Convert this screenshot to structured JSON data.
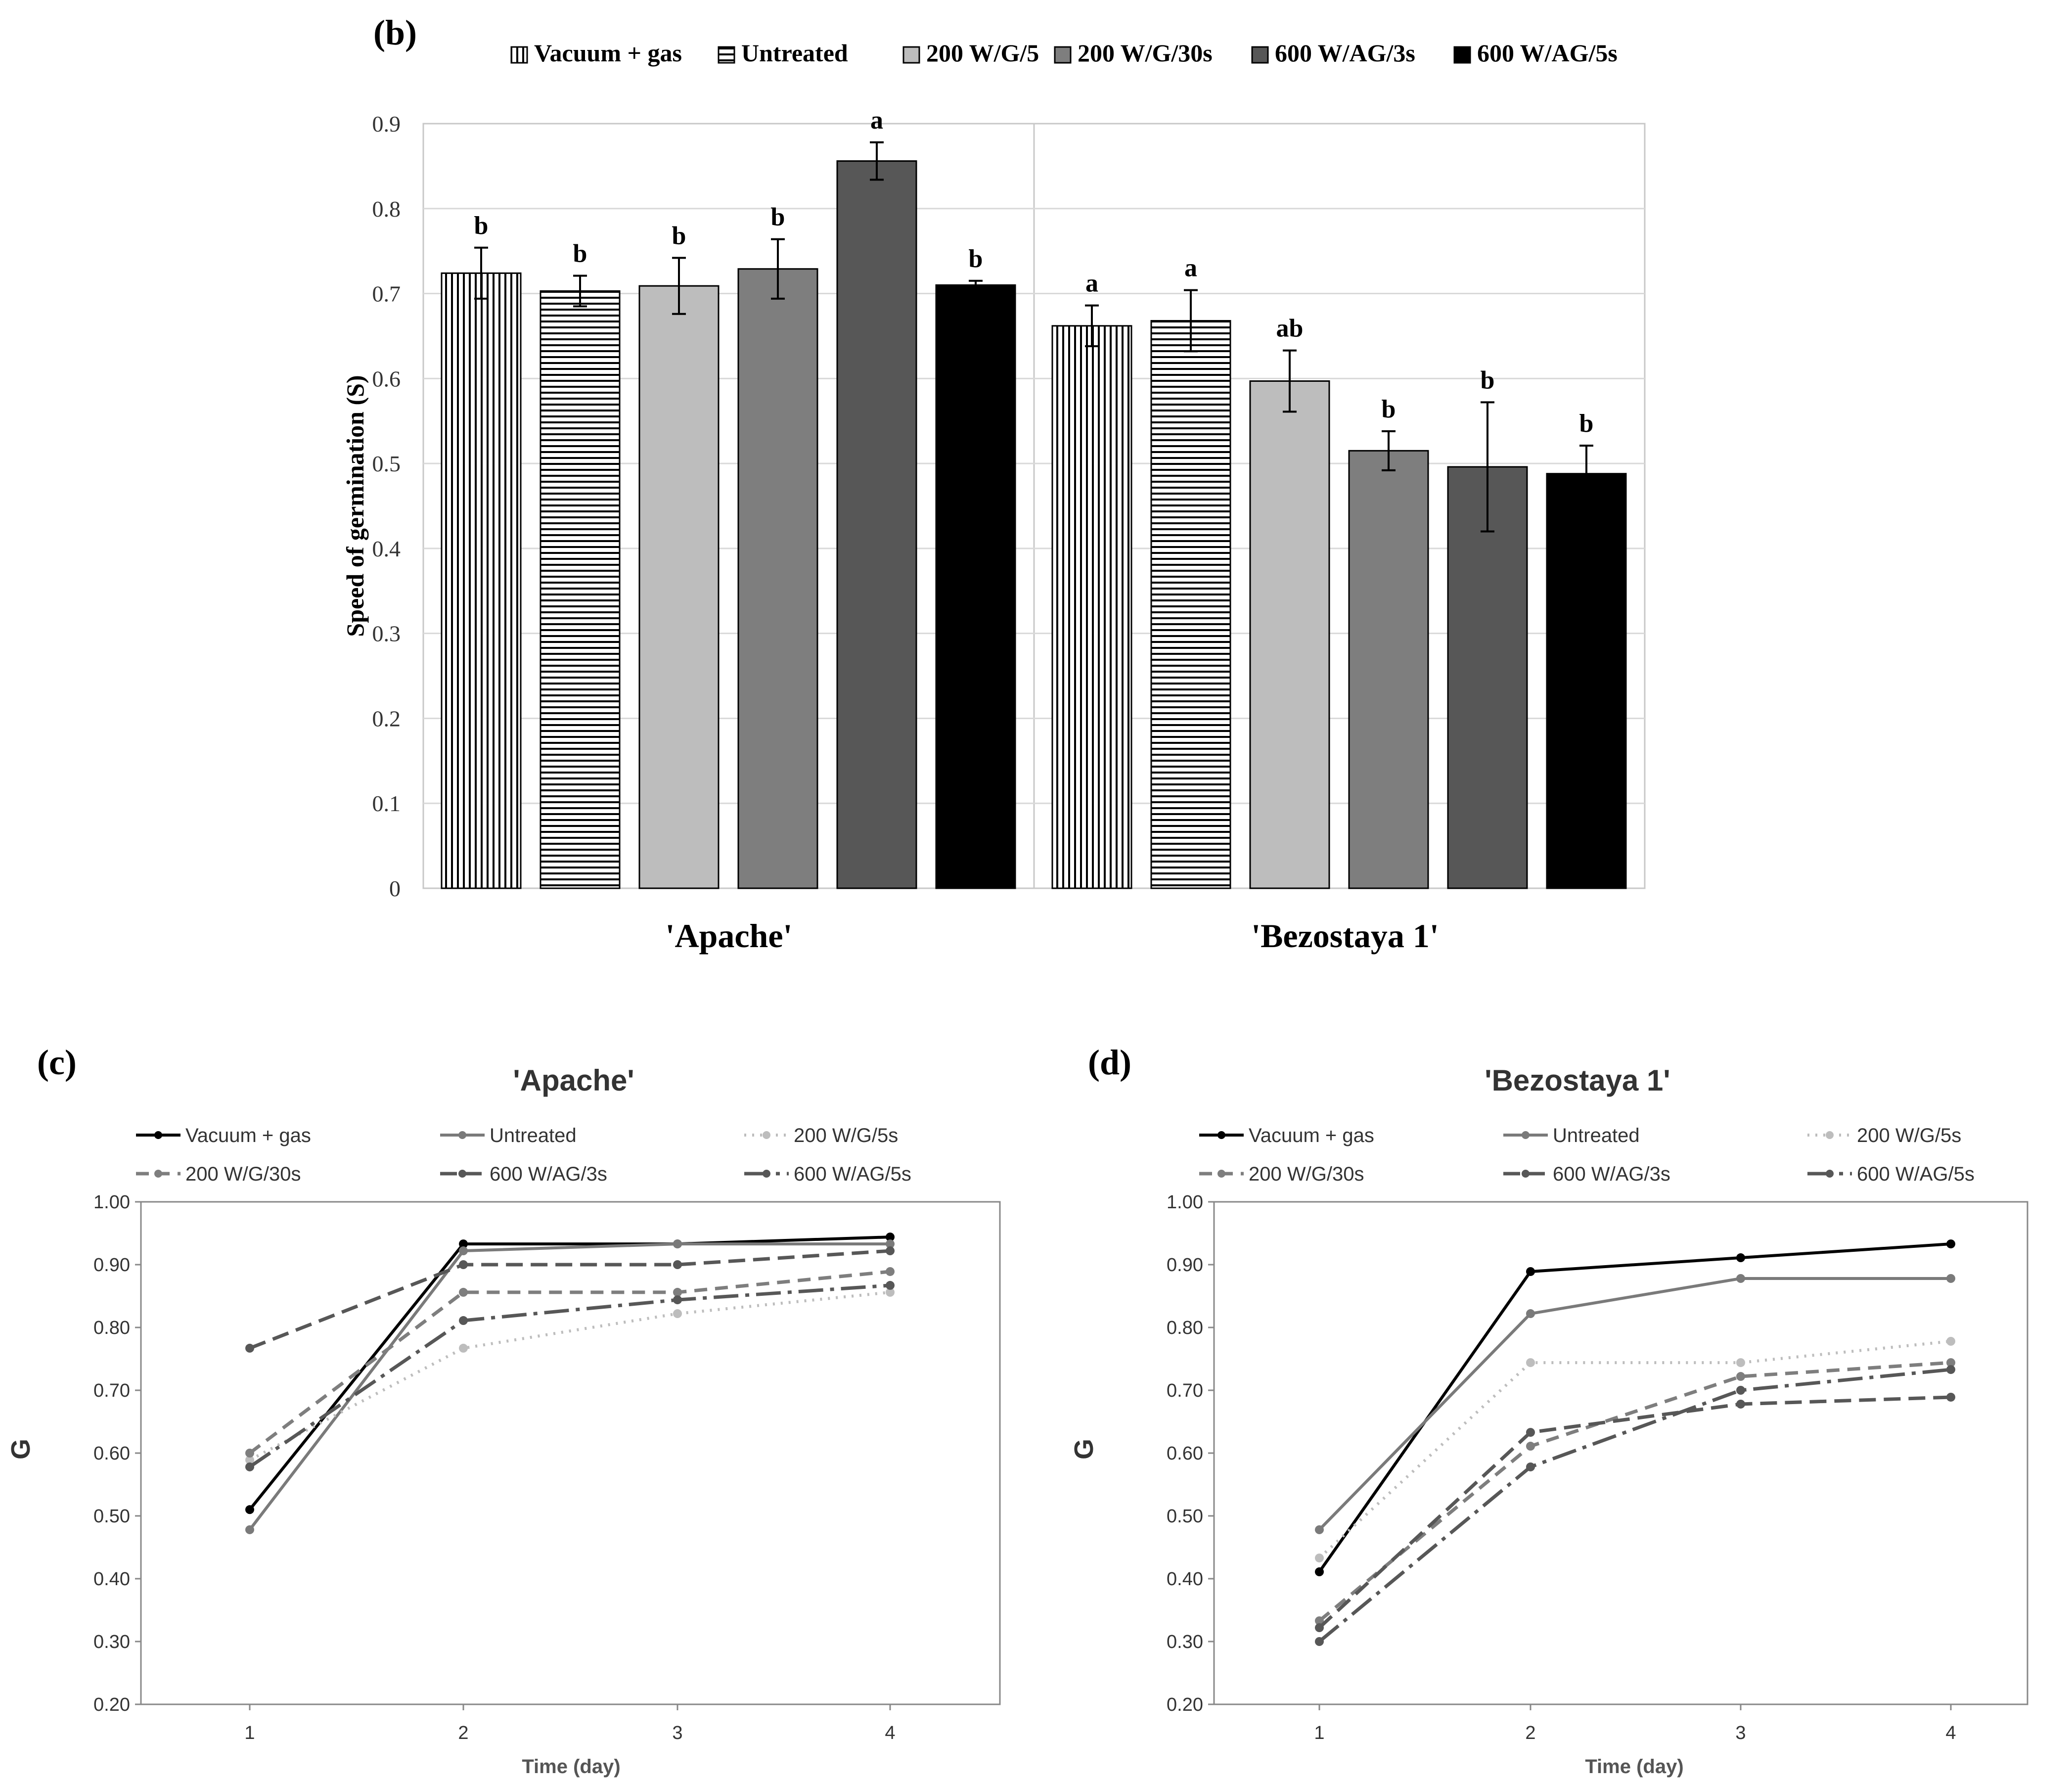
{
  "panels": {
    "b": "(b)",
    "c": "(c)",
    "d": "(d)"
  },
  "bar_legend": [
    "Vacuum + gas",
    "Untreated",
    "200 W/G/5",
    "200 W/G/30s",
    "600 W/AG/3s",
    "600 W/AG/5s"
  ],
  "line_legend": [
    "Vacuum + gas",
    "Untreated",
    "200 W/G/5s",
    "200 W/G/30s",
    "600 W/AG/3s",
    "600 W/AG/5s"
  ],
  "colors": {
    "vacuum": "#000000",
    "untreated": "#7a7a7a",
    "g5": "#bdbdbd",
    "g30": "#7e7e7e",
    "ag3": "#575757",
    "ag5": "#000000",
    "axis": "#888888",
    "grid": "#d6d6d6"
  },
  "chart_data": [
    {
      "type": "bar",
      "panel": "(b)",
      "title": "",
      "ylabel": "Speed of germination (S)",
      "xlabel": "",
      "ylim": [
        0,
        0.9
      ],
      "yticks": [
        "0",
        "0.1",
        "0.2",
        "0.3",
        "0.4",
        "0.5",
        "0.6",
        "0.7",
        "0.8",
        "0.9"
      ],
      "categories": [
        "'Apache'",
        "'Bezostaya 1'"
      ],
      "series": [
        {
          "name": "Vacuum + gas",
          "values": [
            0.724,
            0.662
          ],
          "errors": [
            0.03,
            0.024
          ],
          "letters": [
            "b",
            "a"
          ]
        },
        {
          "name": "Untreated",
          "values": [
            0.703,
            0.668
          ],
          "errors": [
            0.018,
            0.036
          ],
          "letters": [
            "b",
            "a"
          ]
        },
        {
          "name": "200 W/G/5",
          "values": [
            0.709,
            0.597
          ],
          "errors": [
            0.033,
            0.036
          ],
          "letters": [
            "b",
            "ab"
          ]
        },
        {
          "name": "200 W/G/30s",
          "values": [
            0.729,
            0.515
          ],
          "errors": [
            0.035,
            0.023
          ],
          "letters": [
            "b",
            "b"
          ]
        },
        {
          "name": "600 W/AG/3s",
          "values": [
            0.856,
            0.496
          ],
          "errors": [
            0.022,
            0.076
          ],
          "letters": [
            "a",
            "b"
          ]
        },
        {
          "name": "600 W/AG/5s",
          "values": [
            0.71,
            0.488
          ],
          "errors": [
            0.005,
            0.033
          ],
          "letters": [
            "b",
            "b"
          ]
        }
      ]
    },
    {
      "type": "line",
      "panel": "(c)",
      "title": "'Apache'",
      "xlabel": "Time (day)",
      "ylabel": "G",
      "x": [
        1,
        2,
        3,
        4
      ],
      "xticks": [
        "1",
        "2",
        "3",
        "4"
      ],
      "ylim": [
        0.2,
        1.0
      ],
      "yticks": [
        "0.20",
        "0.30",
        "0.40",
        "0.50",
        "0.60",
        "0.70",
        "0.80",
        "0.90",
        "1.00"
      ],
      "series": [
        {
          "name": "Vacuum + gas",
          "values": [
            0.51,
            0.933,
            0.933,
            0.944
          ]
        },
        {
          "name": "Untreated",
          "values": [
            0.478,
            0.922,
            0.933,
            0.933
          ]
        },
        {
          "name": "200 W/G/5s",
          "values": [
            0.589,
            0.767,
            0.822,
            0.856
          ]
        },
        {
          "name": "200 W/G/30s",
          "values": [
            0.6,
            0.856,
            0.856,
            0.889
          ]
        },
        {
          "name": "600 W/AG/3s",
          "values": [
            0.767,
            0.9,
            0.9,
            0.922
          ]
        },
        {
          "name": "600 W/AG/5s",
          "values": [
            0.578,
            0.811,
            0.844,
            0.867
          ]
        }
      ]
    },
    {
      "type": "line",
      "panel": "(d)",
      "title": "'Bezostaya 1'",
      "xlabel": "Time (day)",
      "ylabel": "G",
      "x": [
        1,
        2,
        3,
        4
      ],
      "xticks": [
        "1",
        "2",
        "3",
        "4"
      ],
      "ylim": [
        0.2,
        1.0
      ],
      "yticks": [
        "0.20",
        "0.30",
        "0.40",
        "0.50",
        "0.60",
        "0.70",
        "0.80",
        "0.90",
        "1.00"
      ],
      "series": [
        {
          "name": "Vacuum + gas",
          "values": [
            0.411,
            0.889,
            0.911,
            0.933
          ]
        },
        {
          "name": "Untreated",
          "values": [
            0.478,
            0.822,
            0.878,
            0.878
          ]
        },
        {
          "name": "200 W/G/5s",
          "values": [
            0.433,
            0.744,
            0.744,
            0.778
          ]
        },
        {
          "name": "200 W/G/30s",
          "values": [
            0.333,
            0.611,
            0.722,
            0.744
          ]
        },
        {
          "name": "600 W/AG/3s",
          "values": [
            0.322,
            0.633,
            0.678,
            0.689
          ]
        },
        {
          "name": "600 W/AG/5s",
          "values": [
            0.3,
            0.578,
            0.7,
            0.733
          ]
        }
      ]
    }
  ]
}
